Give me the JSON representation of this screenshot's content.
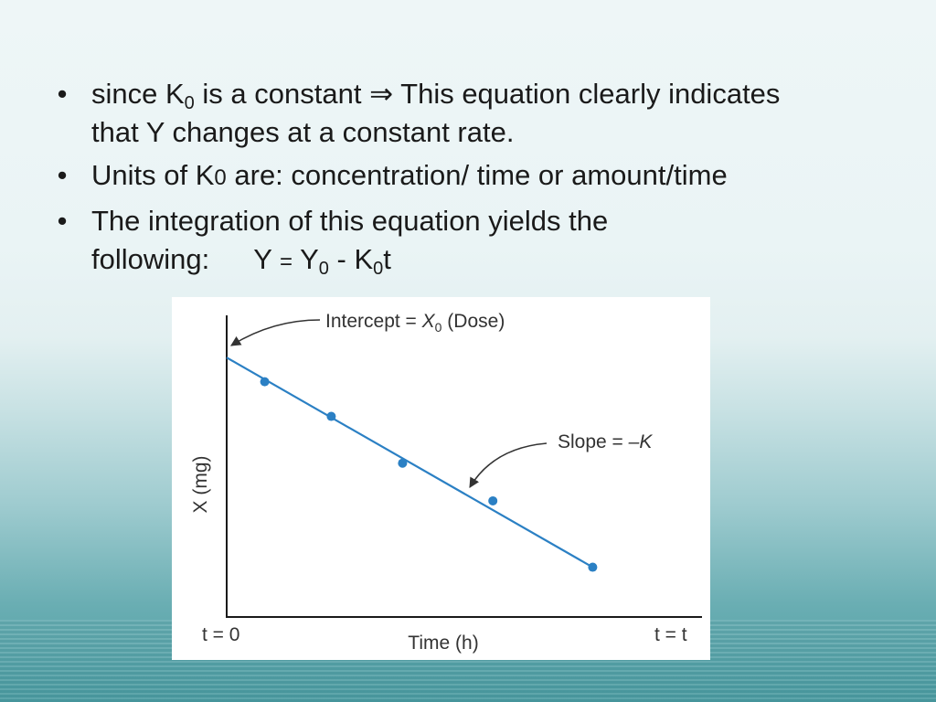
{
  "bullets": {
    "b1": {
      "p1": "since K",
      "sub1": "0",
      "p2": "is a constant",
      "arrow": "⇒",
      "p3": "This equation clearly indicates",
      "line2": "that Y changes at a constant rate."
    },
    "b2": {
      "p1": "Units of K",
      "k0": "0",
      "p2": "are: concentration/ time or amount/time"
    },
    "b3": {
      "line1": "The integration of this equation yields the",
      "p1": "following:",
      "f1": "Y",
      "eq": "=",
      "f2": "Y",
      "sub1": "0",
      "minus": "-",
      "f3": "K",
      "sub2": "0",
      "f4": "t"
    }
  },
  "chart_data": {
    "type": "scatter",
    "ylabel": "X (mg)",
    "xlabel": "Time (h)",
    "x_tick_left": "t = 0",
    "x_tick_right": "t = t",
    "annotations": {
      "intercept_text": "Intercept = ",
      "intercept_sym": "X",
      "intercept_sub": "0",
      "intercept_tail": " (Dose)",
      "slope_text": "Slope = ",
      "slope_sym": "–K"
    },
    "xlim": [
      0,
      10
    ],
    "ylim": [
      0,
      10
    ],
    "points": [
      {
        "x": 0.8,
        "y": 7.8
      },
      {
        "x": 2.2,
        "y": 6.65
      },
      {
        "x": 3.7,
        "y": 5.1
      },
      {
        "x": 5.6,
        "y": 3.85
      },
      {
        "x": 7.7,
        "y": 1.65
      }
    ],
    "fit_line": {
      "x0": 0,
      "y0": 8.6,
      "x1": 7.7,
      "y1": 1.65
    },
    "colors": {
      "series": "#2b80c4",
      "axis": "#1a1a1a",
      "text": "#333333"
    }
  }
}
